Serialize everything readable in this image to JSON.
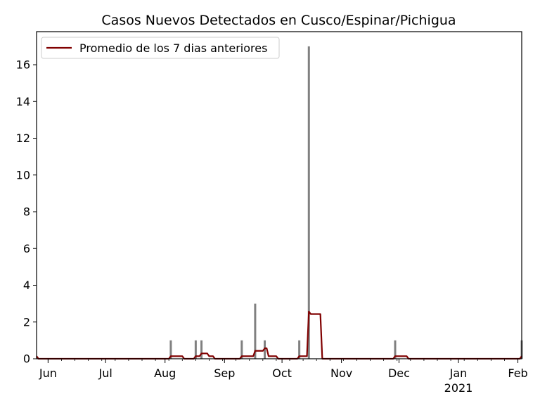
{
  "chart_data": {
    "type": "bar",
    "title": "Casos Nuevos Detectados en Cusco/Espinar/Pichigua",
    "xlabel": "",
    "ylabel": "",
    "xlim": [
      "2020-05-26",
      "2021-02-03"
    ],
    "ylim": [
      0,
      17.8
    ],
    "yticks": [
      0,
      2,
      4,
      6,
      8,
      10,
      12,
      14,
      16
    ],
    "xticks": [
      {
        "date": "2020-06-01",
        "label": "Jun",
        "sublabel": ""
      },
      {
        "date": "2020-07-01",
        "label": "Jul",
        "sublabel": ""
      },
      {
        "date": "2020-08-01",
        "label": "Aug",
        "sublabel": ""
      },
      {
        "date": "2020-09-01",
        "label": "Sep",
        "sublabel": ""
      },
      {
        "date": "2020-10-01",
        "label": "Oct",
        "sublabel": ""
      },
      {
        "date": "2020-11-01",
        "label": "Nov",
        "sublabel": ""
      },
      {
        "date": "2020-12-01",
        "label": "Dec",
        "sublabel": ""
      },
      {
        "date": "2021-01-01",
        "label": "Jan",
        "sublabel": "2021"
      },
      {
        "date": "2021-02-01",
        "label": "Feb",
        "sublabel": ""
      }
    ],
    "grid": false,
    "legend": {
      "position": "upper-left",
      "entries": [
        "Promedio de los 7 dias anteriores"
      ]
    },
    "series": [
      {
        "name": "",
        "kind": "bar",
        "color": "#808080",
        "points": [
          {
            "date": "2020-08-04",
            "value": 1
          },
          {
            "date": "2020-08-17",
            "value": 1
          },
          {
            "date": "2020-08-20",
            "value": 1
          },
          {
            "date": "2020-09-10",
            "value": 1
          },
          {
            "date": "2020-09-17",
            "value": 3
          },
          {
            "date": "2020-09-22",
            "value": 1
          },
          {
            "date": "2020-10-10",
            "value": 1
          },
          {
            "date": "2020-10-15",
            "value": 17
          },
          {
            "date": "2020-11-29",
            "value": 1
          },
          {
            "date": "2021-02-03",
            "value": 1
          }
        ]
      },
      {
        "name": "Promedio de los 7 dias anteriores",
        "kind": "line",
        "color": "#800000",
        "points": [
          {
            "date": "2020-05-26",
            "value": 0.14
          },
          {
            "date": "2020-05-27",
            "value": 0
          },
          {
            "date": "2020-08-03",
            "value": 0
          },
          {
            "date": "2020-08-04",
            "value": 0.14
          },
          {
            "date": "2020-08-10",
            "value": 0.14
          },
          {
            "date": "2020-08-11",
            "value": 0
          },
          {
            "date": "2020-08-16",
            "value": 0
          },
          {
            "date": "2020-08-17",
            "value": 0.14
          },
          {
            "date": "2020-08-19",
            "value": 0.14
          },
          {
            "date": "2020-08-20",
            "value": 0.29
          },
          {
            "date": "2020-08-23",
            "value": 0.29
          },
          {
            "date": "2020-08-24",
            "value": 0.14
          },
          {
            "date": "2020-08-26",
            "value": 0.14
          },
          {
            "date": "2020-08-27",
            "value": 0
          },
          {
            "date": "2020-09-09",
            "value": 0
          },
          {
            "date": "2020-09-10",
            "value": 0.14
          },
          {
            "date": "2020-09-16",
            "value": 0.14
          },
          {
            "date": "2020-09-17",
            "value": 0.43
          },
          {
            "date": "2020-09-21",
            "value": 0.43
          },
          {
            "date": "2020-09-22",
            "value": 0.57
          },
          {
            "date": "2020-09-23",
            "value": 0.57
          },
          {
            "date": "2020-09-24",
            "value": 0.14
          },
          {
            "date": "2020-09-28",
            "value": 0.14
          },
          {
            "date": "2020-09-29",
            "value": 0
          },
          {
            "date": "2020-10-09",
            "value": 0
          },
          {
            "date": "2020-10-10",
            "value": 0.14
          },
          {
            "date": "2020-10-14",
            "value": 0.14
          },
          {
            "date": "2020-10-15",
            "value": 2.57
          },
          {
            "date": "2020-10-16",
            "value": 2.43
          },
          {
            "date": "2020-10-21",
            "value": 2.43
          },
          {
            "date": "2020-10-22",
            "value": 0
          },
          {
            "date": "2020-11-28",
            "value": 0
          },
          {
            "date": "2020-11-29",
            "value": 0.14
          },
          {
            "date": "2020-12-05",
            "value": 0.14
          },
          {
            "date": "2020-12-06",
            "value": 0
          },
          {
            "date": "2021-02-02",
            "value": 0
          },
          {
            "date": "2021-02-03",
            "value": 0.14
          }
        ]
      }
    ]
  }
}
